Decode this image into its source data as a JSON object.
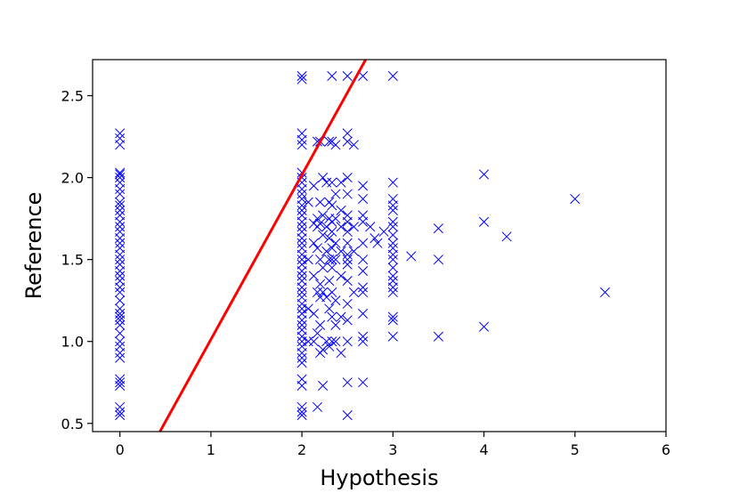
{
  "chart_data": {
    "type": "scatter",
    "title": "",
    "xlabel": "Hypothesis",
    "ylabel": "Reference",
    "xlim": [
      -0.3,
      6.0
    ],
    "ylim": [
      0.45,
      2.72
    ],
    "xticks": [
      0,
      1,
      2,
      3,
      4,
      5,
      6
    ],
    "yticks": [
      0.5,
      1.0,
      1.5,
      2.0,
      2.5
    ],
    "xtick_labels": [
      "0",
      "1",
      "2",
      "3",
      "4",
      "5",
      "6"
    ],
    "ytick_labels": [
      "0.5",
      "1.0",
      "1.5",
      "2.0",
      "2.5"
    ],
    "grid": false,
    "legend": "none",
    "marker": "x",
    "marker_color": "#0000ff",
    "line_color": "#ff0000",
    "line": {
      "x": [
        0.44,
        2.7
      ],
      "y": [
        0.45,
        2.72
      ]
    },
    "points": [
      [
        0,
        2.27
      ],
      [
        0,
        2.24
      ],
      [
        0,
        2.2
      ],
      [
        0,
        2.03
      ],
      [
        0,
        2.02
      ],
      [
        0,
        2.0
      ],
      [
        0,
        1.97
      ],
      [
        0,
        1.93
      ],
      [
        0,
        1.9
      ],
      [
        0,
        1.85
      ],
      [
        0,
        1.83
      ],
      [
        0,
        1.8
      ],
      [
        0,
        1.77
      ],
      [
        0,
        1.73
      ],
      [
        0,
        1.7
      ],
      [
        0,
        1.67
      ],
      [
        0,
        1.63
      ],
      [
        0,
        1.6
      ],
      [
        0,
        1.57
      ],
      [
        0,
        1.53
      ],
      [
        0,
        1.5
      ],
      [
        0,
        1.47
      ],
      [
        0,
        1.43
      ],
      [
        0,
        1.4
      ],
      [
        0,
        1.37
      ],
      [
        0,
        1.33
      ],
      [
        0,
        1.3
      ],
      [
        0,
        1.25
      ],
      [
        0,
        1.2
      ],
      [
        0,
        1.17
      ],
      [
        0,
        1.15
      ],
      [
        0,
        1.13
      ],
      [
        0,
        1.1
      ],
      [
        0,
        1.05
      ],
      [
        0,
        1.0
      ],
      [
        0,
        0.97
      ],
      [
        0,
        0.93
      ],
      [
        0,
        0.9
      ],
      [
        0,
        0.77
      ],
      [
        0,
        0.75
      ],
      [
        0,
        0.73
      ],
      [
        0,
        0.6
      ],
      [
        0,
        0.57
      ],
      [
        0,
        0.55
      ],
      [
        2,
        2.62
      ],
      [
        2,
        2.6
      ],
      [
        2,
        2.27
      ],
      [
        2,
        2.23
      ],
      [
        2,
        2.2
      ],
      [
        2,
        2.03
      ],
      [
        2,
        2.0
      ],
      [
        2,
        1.97
      ],
      [
        2,
        1.93
      ],
      [
        2,
        1.9
      ],
      [
        2,
        1.87
      ],
      [
        2,
        1.83
      ],
      [
        2,
        1.8
      ],
      [
        2,
        1.77
      ],
      [
        2,
        1.73
      ],
      [
        2,
        1.7
      ],
      [
        2,
        1.67
      ],
      [
        2,
        1.63
      ],
      [
        2,
        1.6
      ],
      [
        2,
        1.57
      ],
      [
        2,
        1.53
      ],
      [
        2,
        1.5
      ],
      [
        2,
        1.47
      ],
      [
        2,
        1.43
      ],
      [
        2,
        1.4
      ],
      [
        2,
        1.37
      ],
      [
        2,
        1.33
      ],
      [
        2,
        1.3
      ],
      [
        2,
        1.27
      ],
      [
        2,
        1.23
      ],
      [
        2,
        1.2
      ],
      [
        2,
        1.17
      ],
      [
        2,
        1.13
      ],
      [
        2,
        1.1
      ],
      [
        2,
        1.07
      ],
      [
        2,
        1.03
      ],
      [
        2,
        1.0
      ],
      [
        2,
        0.97
      ],
      [
        2,
        0.93
      ],
      [
        2,
        0.9
      ],
      [
        2,
        0.87
      ],
      [
        2,
        0.77
      ],
      [
        2,
        0.73
      ],
      [
        2,
        0.6
      ],
      [
        2,
        0.57
      ],
      [
        2,
        0.55
      ],
      [
        2.07,
        1.85
      ],
      [
        2.07,
        1.5
      ],
      [
        2.07,
        1.2
      ],
      [
        2.07,
        1.0
      ],
      [
        2.13,
        1.95
      ],
      [
        2.13,
        1.72
      ],
      [
        2.13,
        1.6
      ],
      [
        2.13,
        1.4
      ],
      [
        2.13,
        1.17
      ],
      [
        2.13,
        1.0
      ],
      [
        2.17,
        2.22
      ],
      [
        2.17,
        1.75
      ],
      [
        2.17,
        1.7
      ],
      [
        2.17,
        1.57
      ],
      [
        2.17,
        1.3
      ],
      [
        2.17,
        1.05
      ],
      [
        2.17,
        0.6
      ],
      [
        2.2,
        2.22
      ],
      [
        2.2,
        1.85
      ],
      [
        2.2,
        1.72
      ],
      [
        2.2,
        1.5
      ],
      [
        2.2,
        1.35
      ],
      [
        2.2,
        1.27
      ],
      [
        2.2,
        1.1
      ],
      [
        2.2,
        0.93
      ],
      [
        2.23,
        2.0
      ],
      [
        2.23,
        1.77
      ],
      [
        2.23,
        1.65
      ],
      [
        2.23,
        1.45
      ],
      [
        2.23,
        1.3
      ],
      [
        2.23,
        0.95
      ],
      [
        2.23,
        0.73
      ],
      [
        2.27,
        1.97
      ],
      [
        2.27,
        1.7
      ],
      [
        2.27,
        1.55
      ],
      [
        2.27,
        1.27
      ],
      [
        2.27,
        1.0
      ],
      [
        2.3,
        2.22
      ],
      [
        2.3,
        1.85
      ],
      [
        2.3,
        1.75
      ],
      [
        2.3,
        1.63
      ],
      [
        2.3,
        1.5
      ],
      [
        2.3,
        1.37
      ],
      [
        2.3,
        1.2
      ],
      [
        2.3,
        0.97
      ],
      [
        2.33,
        2.62
      ],
      [
        2.33,
        2.22
      ],
      [
        2.33,
        1.97
      ],
      [
        2.33,
        1.83
      ],
      [
        2.33,
        1.73
      ],
      [
        2.33,
        1.67
      ],
      [
        2.33,
        1.57
      ],
      [
        2.33,
        1.5
      ],
      [
        2.33,
        1.45
      ],
      [
        2.33,
        1.3
      ],
      [
        2.33,
        1.15
      ],
      [
        2.33,
        1.0
      ],
      [
        2.37,
        2.2
      ],
      [
        2.37,
        1.9
      ],
      [
        2.37,
        1.75
      ],
      [
        2.37,
        1.6
      ],
      [
        2.37,
        1.5
      ],
      [
        2.37,
        1.25
      ],
      [
        2.37,
        1.1
      ],
      [
        2.37,
        1.0
      ],
      [
        2.43,
        1.97
      ],
      [
        2.43,
        1.8
      ],
      [
        2.43,
        1.7
      ],
      [
        2.43,
        1.55
      ],
      [
        2.43,
        1.4
      ],
      [
        2.43,
        1.15
      ],
      [
        2.43,
        0.93
      ],
      [
        2.5,
        2.62
      ],
      [
        2.5,
        2.27
      ],
      [
        2.5,
        2.22
      ],
      [
        2.5,
        2.0
      ],
      [
        2.5,
        1.9
      ],
      [
        2.5,
        1.77
      ],
      [
        2.5,
        1.73
      ],
      [
        2.5,
        1.67
      ],
      [
        2.5,
        1.6
      ],
      [
        2.5,
        1.53
      ],
      [
        2.5,
        1.5
      ],
      [
        2.5,
        1.47
      ],
      [
        2.5,
        1.37
      ],
      [
        2.5,
        1.23
      ],
      [
        2.5,
        1.13
      ],
      [
        2.5,
        1.0
      ],
      [
        2.5,
        0.75
      ],
      [
        2.5,
        0.55
      ],
      [
        2.57,
        2.2
      ],
      [
        2.57,
        1.7
      ],
      [
        2.57,
        1.55
      ],
      [
        2.57,
        1.3
      ],
      [
        2.67,
        2.62
      ],
      [
        2.67,
        1.95
      ],
      [
        2.67,
        1.87
      ],
      [
        2.67,
        1.77
      ],
      [
        2.67,
        1.73
      ],
      [
        2.67,
        1.6
      ],
      [
        2.67,
        1.5
      ],
      [
        2.67,
        1.43
      ],
      [
        2.67,
        1.33
      ],
      [
        2.67,
        1.3
      ],
      [
        2.67,
        1.17
      ],
      [
        2.67,
        1.03
      ],
      [
        2.67,
        1.0
      ],
      [
        2.67,
        0.75
      ],
      [
        2.75,
        1.7
      ],
      [
        2.8,
        1.63
      ],
      [
        2.83,
        1.6
      ],
      [
        2.9,
        1.67
      ],
      [
        3,
        2.62
      ],
      [
        3,
        1.97
      ],
      [
        3,
        1.87
      ],
      [
        3,
        1.83
      ],
      [
        3,
        1.8
      ],
      [
        3,
        1.73
      ],
      [
        3,
        1.7
      ],
      [
        3,
        1.65
      ],
      [
        3,
        1.6
      ],
      [
        3,
        1.57
      ],
      [
        3,
        1.53
      ],
      [
        3,
        1.5
      ],
      [
        3,
        1.45
      ],
      [
        3,
        1.4
      ],
      [
        3,
        1.37
      ],
      [
        3,
        1.33
      ],
      [
        3,
        1.3
      ],
      [
        3,
        1.15
      ],
      [
        3,
        1.13
      ],
      [
        3,
        1.03
      ],
      [
        3.2,
        1.52
      ],
      [
        3.5,
        1.69
      ],
      [
        3.5,
        1.5
      ],
      [
        3.5,
        1.03
      ],
      [
        4,
        2.02
      ],
      [
        4,
        1.73
      ],
      [
        4,
        1.09
      ],
      [
        4.25,
        1.64
      ],
      [
        5,
        1.87
      ],
      [
        5.33,
        1.3
      ]
    ]
  }
}
